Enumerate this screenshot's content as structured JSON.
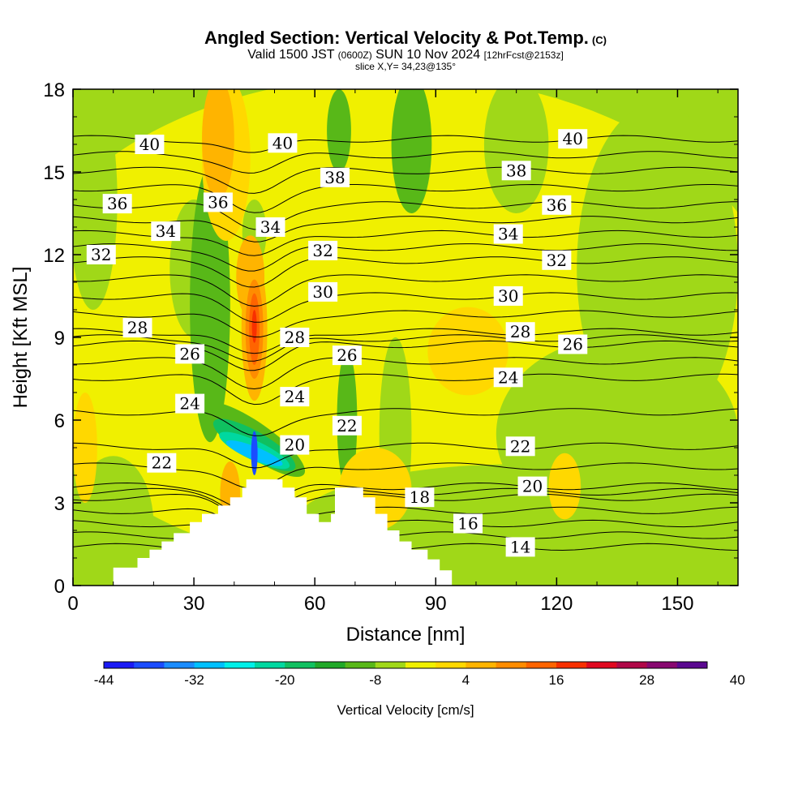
{
  "header": {
    "title": "Angled Section: Vertical Velocity & Pot.Temp.",
    "title_units": "(C)",
    "valid_main": "Valid 1500 JST",
    "valid_zulu": "(0600Z)",
    "valid_date": "SUN 10 Nov 2024",
    "forecast": "[12hrFcst@2153z]",
    "slice": "slice X,Y= 34,23@135°"
  },
  "chart_data": {
    "type": "heatmap",
    "xlabel": "Distance [nm]",
    "ylabel": "Height [Kft MSL]",
    "xlim": [
      0,
      165
    ],
    "ylim": [
      0,
      18
    ],
    "xticks": [
      0,
      30,
      60,
      90,
      120,
      150
    ],
    "yticks": [
      0,
      3,
      6,
      9,
      12,
      15,
      18
    ],
    "colorbar": {
      "label": "Vertical Velocity [cm/s]",
      "ticks": [
        "-44",
        "-32",
        "-20",
        "-8",
        "4",
        "16",
        "28",
        "40"
      ],
      "colors": [
        "#1a1af5",
        "#1a4cff",
        "#1a8cff",
        "#00c0ff",
        "#00f0e8",
        "#00d8a0",
        "#10c060",
        "#20a828",
        "#58b818",
        "#a0d818",
        "#f0f000",
        "#ffd800",
        "#ffb400",
        "#ff8c00",
        "#ff6400",
        "#f83000",
        "#e00820",
        "#b00848",
        "#880870",
        "#5a0890"
      ]
    },
    "contour_labels": [
      {
        "text": "40",
        "x": 19,
        "y": 16.0
      },
      {
        "text": "40",
        "x": 52,
        "y": 16.05
      },
      {
        "text": "40",
        "x": 124,
        "y": 16.2
      },
      {
        "text": "38",
        "x": 65,
        "y": 14.8
      },
      {
        "text": "38",
        "x": 110,
        "y": 15.05
      },
      {
        "text": "36",
        "x": 11,
        "y": 13.85
      },
      {
        "text": "36",
        "x": 36,
        "y": 13.9
      },
      {
        "text": "36",
        "x": 120,
        "y": 13.8
      },
      {
        "text": "34",
        "x": 23,
        "y": 12.85
      },
      {
        "text": "34",
        "x": 49,
        "y": 13.0
      },
      {
        "text": "34",
        "x": 108,
        "y": 12.75
      },
      {
        "text": "32",
        "x": 7,
        "y": 12.0
      },
      {
        "text": "32",
        "x": 62,
        "y": 12.15
      },
      {
        "text": "32",
        "x": 120,
        "y": 11.8
      },
      {
        "text": "30",
        "x": 62,
        "y": 10.65
      },
      {
        "text": "30",
        "x": 108,
        "y": 10.5
      },
      {
        "text": "28",
        "x": 16,
        "y": 9.35
      },
      {
        "text": "28",
        "x": 55,
        "y": 9.0
      },
      {
        "text": "28",
        "x": 111,
        "y": 9.2
      },
      {
        "text": "26",
        "x": 29,
        "y": 8.4
      },
      {
        "text": "26",
        "x": 68,
        "y": 8.35
      },
      {
        "text": "26",
        "x": 124,
        "y": 8.75
      },
      {
        "text": "24",
        "x": 29,
        "y": 6.6
      },
      {
        "text": "24",
        "x": 55,
        "y": 6.85
      },
      {
        "text": "24",
        "x": 108,
        "y": 7.55
      },
      {
        "text": "22",
        "x": 22,
        "y": 4.45
      },
      {
        "text": "22",
        "x": 68,
        "y": 5.8
      },
      {
        "text": "22",
        "x": 111,
        "y": 5.05
      },
      {
        "text": "20",
        "x": 55,
        "y": 5.1
      },
      {
        "text": "20",
        "x": 114,
        "y": 3.6
      },
      {
        "text": "18",
        "x": 86,
        "y": 3.2
      },
      {
        "text": "16",
        "x": 98,
        "y": 2.25
      },
      {
        "text": "14",
        "x": 111,
        "y": 1.4
      }
    ],
    "terrain": [
      [
        0,
        0
      ],
      [
        10,
        0
      ],
      [
        10,
        0.65
      ],
      [
        16,
        0.65
      ],
      [
        16,
        1.0
      ],
      [
        19,
        1.0
      ],
      [
        19,
        1.3
      ],
      [
        22,
        1.3
      ],
      [
        22,
        1.6
      ],
      [
        25,
        1.6
      ],
      [
        25,
        1.9
      ],
      [
        29,
        1.9
      ],
      [
        29,
        2.3
      ],
      [
        32,
        2.3
      ],
      [
        32,
        2.6
      ],
      [
        36,
        2.6
      ],
      [
        36,
        2.9
      ],
      [
        39,
        2.9
      ],
      [
        39,
        3.2
      ],
      [
        42,
        3.2
      ],
      [
        42,
        3.55
      ],
      [
        43,
        3.55
      ],
      [
        43,
        3.85
      ],
      [
        52,
        3.85
      ],
      [
        52,
        3.55
      ],
      [
        55,
        3.55
      ],
      [
        55,
        3.2
      ],
      [
        58,
        3.2
      ],
      [
        58,
        2.6
      ],
      [
        61,
        2.6
      ],
      [
        61,
        2.3
      ],
      [
        64,
        2.3
      ],
      [
        64,
        2.6
      ],
      [
        65,
        2.6
      ],
      [
        65,
        3.55
      ],
      [
        72,
        3.55
      ],
      [
        72,
        3.2
      ],
      [
        75,
        3.2
      ],
      [
        75,
        2.6
      ],
      [
        78,
        2.6
      ],
      [
        78,
        2.0
      ],
      [
        81,
        2.0
      ],
      [
        81,
        1.6
      ],
      [
        84,
        1.6
      ],
      [
        84,
        1.3
      ],
      [
        88,
        1.3
      ],
      [
        88,
        0.95
      ],
      [
        91,
        0.95
      ],
      [
        91,
        0.55
      ],
      [
        94,
        0.55
      ],
      [
        94,
        0
      ],
      [
        165,
        0
      ]
    ],
    "fields": [
      {
        "color": "#f0f000",
        "x": 80,
        "y": 9.5,
        "rx": 95,
        "ry": 9,
        "rot": 0
      },
      {
        "color": "#a0d818",
        "x": 5,
        "y": 14,
        "rx": 6,
        "ry": 4,
        "rot": 0
      },
      {
        "color": "#a0d818",
        "x": 30,
        "y": 11.5,
        "rx": 6,
        "ry": 2.5,
        "rot": 0
      },
      {
        "color": "#58b818",
        "x": 34,
        "y": 10.2,
        "rx": 5,
        "ry": 5,
        "rot": 0
      },
      {
        "color": "#58b818",
        "x": 84,
        "y": 16,
        "rx": 5,
        "ry": 2.5,
        "rot": 0
      },
      {
        "color": "#58b818",
        "x": 66,
        "y": 16.5,
        "rx": 3,
        "ry": 1.5,
        "rot": 0
      },
      {
        "color": "#a0d818",
        "x": 110,
        "y": 16,
        "rx": 8,
        "ry": 2.5,
        "rot": 0
      },
      {
        "color": "#a0d818",
        "x": 145,
        "y": 11.5,
        "rx": 20,
        "ry": 6,
        "rot": 0
      },
      {
        "color": "#a0d818",
        "x": 135,
        "y": 5.5,
        "rx": 30,
        "ry": 3.5,
        "rot": 0
      },
      {
        "color": "#a0d818",
        "x": 110,
        "y": 2.2,
        "rx": 55,
        "ry": 2.2,
        "rot": 0
      },
      {
        "color": "#a0d818",
        "x": 10,
        "y": 2.2,
        "rx": 10,
        "ry": 2.5,
        "rot": 0
      },
      {
        "color": "#a0d818",
        "x": 80,
        "y": 5.5,
        "rx": 4,
        "ry": 3.5,
        "rot": 0
      },
      {
        "color": "#58b818",
        "x": 68,
        "y": 6.0,
        "rx": 2.5,
        "ry": 2.5,
        "rot": 0
      },
      {
        "color": "#a0d818",
        "x": 45,
        "y": 12.8,
        "rx": 3,
        "ry": 1.2,
        "rot": 0
      },
      {
        "color": "#ffd800",
        "x": 38,
        "y": 15.5,
        "rx": 6,
        "ry": 3,
        "rot": 0
      },
      {
        "color": "#ffd800",
        "x": 98,
        "y": 8.5,
        "rx": 10,
        "ry": 1.6,
        "rot": 0
      },
      {
        "color": "#ffd800",
        "x": 75,
        "y": 3.5,
        "rx": 9,
        "ry": 1.5,
        "rot": 0
      },
      {
        "color": "#ffd800",
        "x": 122,
        "y": 3.6,
        "rx": 4,
        "ry": 1.2,
        "rot": 0
      },
      {
        "color": "#ffd800",
        "x": 3,
        "y": 5,
        "rx": 3,
        "ry": 2,
        "rot": 0
      },
      {
        "color": "#ffb400",
        "x": 36,
        "y": 16.2,
        "rx": 4,
        "ry": 2.2,
        "rot": 0
      },
      {
        "color": "#ffb400",
        "x": 44,
        "y": 11.2,
        "rx": 3.5,
        "ry": 1.5,
        "rot": 0
      },
      {
        "color": "#ffb400",
        "x": 39,
        "y": 3.3,
        "rx": 2.5,
        "ry": 1.2,
        "rot": 0
      },
      {
        "color": "#ffb400",
        "x": 45,
        "y": 9.3,
        "rx": 3.2,
        "ry": 2.6,
        "rot": 0
      },
      {
        "color": "#ff8c00",
        "x": 45,
        "y": 9.3,
        "rx": 2.2,
        "ry": 1.8,
        "rot": 0
      },
      {
        "color": "#ff6400",
        "x": 45,
        "y": 9.3,
        "rx": 1.3,
        "ry": 1.3,
        "rot": 0
      },
      {
        "color": "#f83000",
        "x": 45,
        "y": 9.4,
        "rx": 0.6,
        "ry": 0.6,
        "rot": 0
      },
      {
        "color": "#58b818",
        "x": 45,
        "y": 5.3,
        "rx": 4.2,
        "ry": 2.2,
        "rot": -55
      },
      {
        "color": "#10c060",
        "x": 45,
        "y": 5.1,
        "rx": 3.3,
        "ry": 1.7,
        "rot": -60
      },
      {
        "color": "#00d8a0",
        "x": 45,
        "y": 4.9,
        "rx": 2.4,
        "ry": 1.4,
        "rot": -65
      },
      {
        "color": "#00c0ff",
        "x": 45,
        "y": 4.8,
        "rx": 1.6,
        "ry": 1.1,
        "rot": -68
      },
      {
        "color": "#1a4cff",
        "x": 45,
        "y": 4.8,
        "rx": 0.8,
        "ry": 0.8,
        "rot": 0
      }
    ]
  }
}
